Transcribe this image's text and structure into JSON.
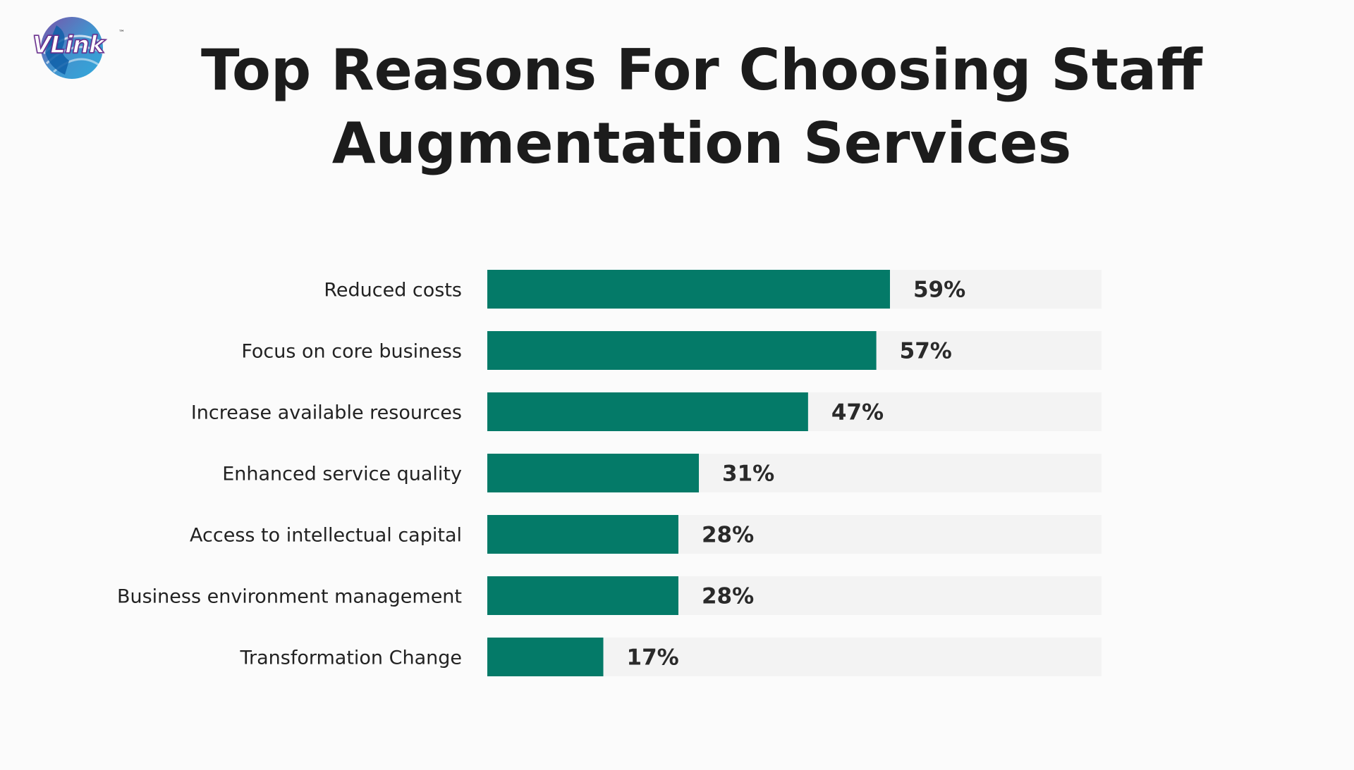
{
  "logo": {
    "text": "VLink",
    "tm": "™"
  },
  "title_lines": [
    "Top Reasons For Choosing Staff",
    "Augmentation Services"
  ],
  "colors": {
    "bar": "#047a68",
    "track": "#f3f3f3",
    "title": "#1c1c1c"
  },
  "chart_data": {
    "type": "bar",
    "orientation": "horizontal",
    "title": "Top Reasons For Choosing Staff Augmentation Services",
    "categories": [
      "Reduced costs",
      "Focus on core business",
      "Increase available resources",
      "Enhanced service quality",
      "Access to intellectual capital",
      "Business environment management",
      "Transformation Change"
    ],
    "values": [
      59,
      57,
      47,
      31,
      28,
      28,
      17
    ],
    "value_labels": [
      "59%",
      "57%",
      "47%",
      "31%",
      "28%",
      "28%",
      "17%"
    ],
    "xlim": [
      0,
      90
    ],
    "grid": false,
    "legend": "none"
  }
}
